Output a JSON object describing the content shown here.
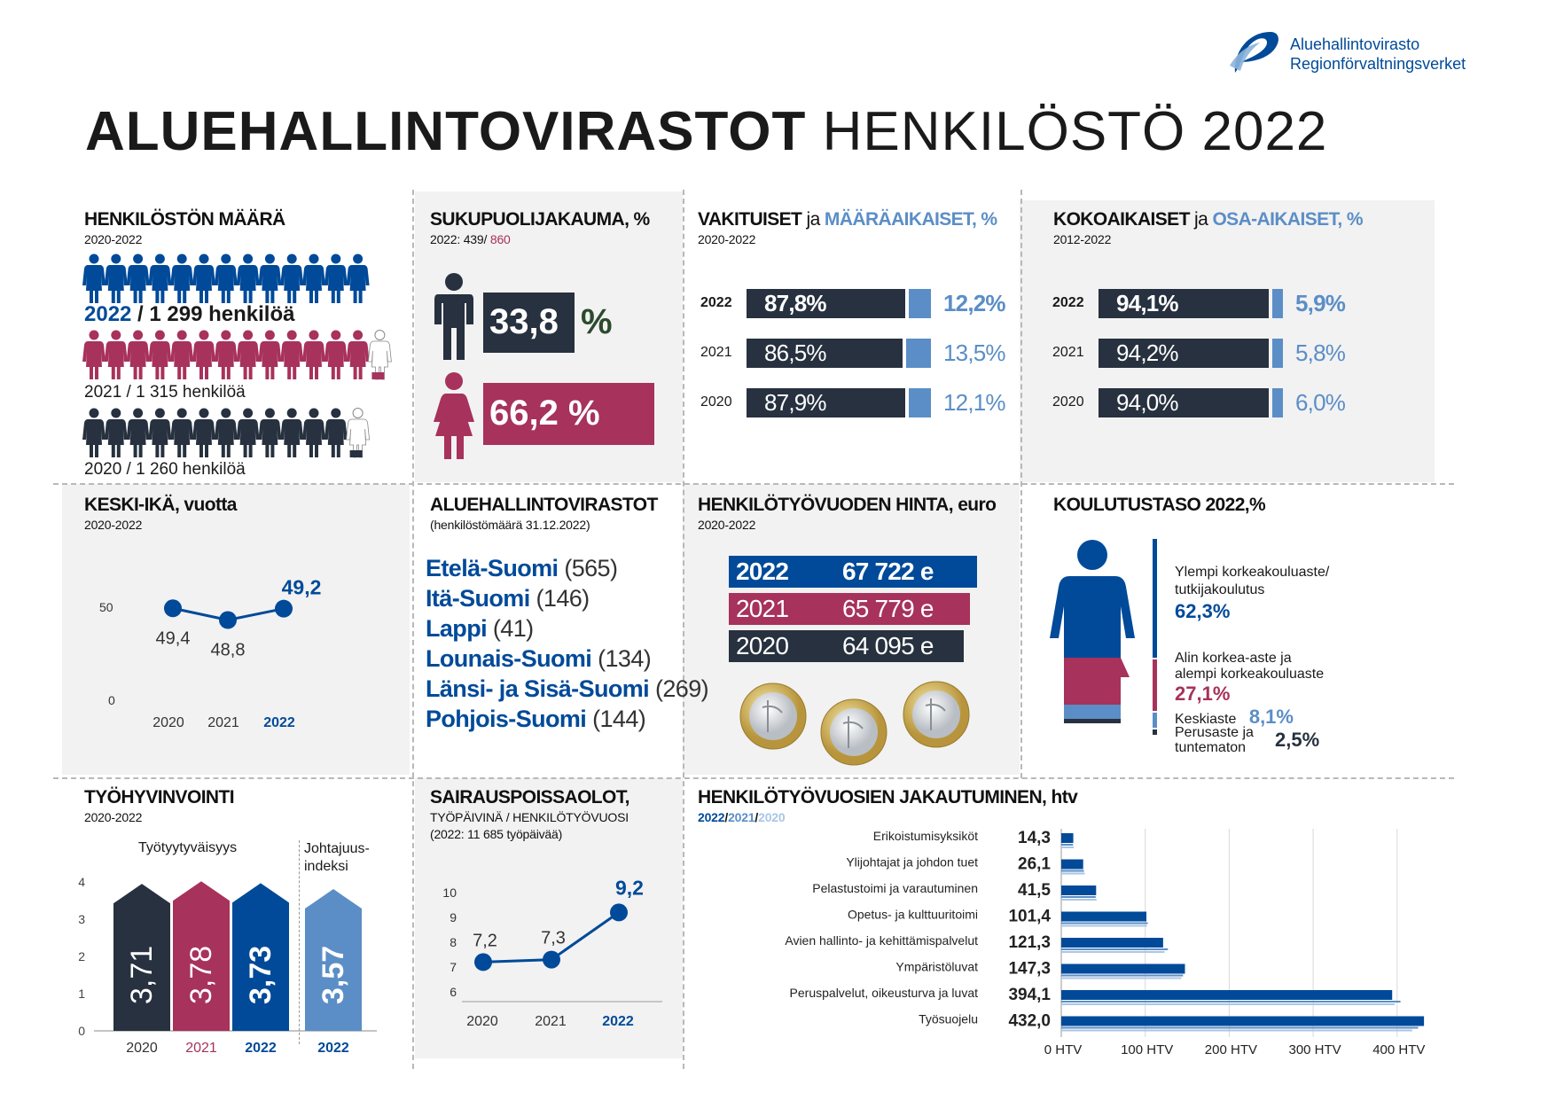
{
  "logo": {
    "line1": "Aluehallintovirasto",
    "line2": "Regionförvaltningsverket"
  },
  "title": {
    "bold": "ALUEHALLINTOVIRASTOT",
    "light": "HENKILÖSTÖ 2022"
  },
  "colors": {
    "navy": "#27313f",
    "blue": "#004a99",
    "lightblue": "#5b8ec6",
    "red": "#a7325b",
    "grey": "#f2f2f2"
  },
  "headcount": {
    "title": "HENKILÖSTÖN MÄÄRÄ",
    "period": "2020-2022",
    "y2022_year": "2022",
    "y2022_rest": " / 1 299 henkilöä",
    "y2021": "2021 / 1 315 henkilöä",
    "y2020": "2020 / 1 260 henkilöä"
  },
  "gender": {
    "title": "SUKUPUOLIJAKAUMA, %",
    "sub_a": "2022: 439/ ",
    "sub_b": "860",
    "male_value": "33,8",
    "male_unit": "%",
    "female_value": "66,2 %"
  },
  "permanent": {
    "title_a": "VAKITUISET",
    "title_b": " ja ",
    "title_c": "MÄÄRÄAIKAISET, %",
    "period": "2020-2022",
    "rows": [
      {
        "year": "2022",
        "a": "87,8%",
        "b": "12,2%",
        "a_val": 87.8,
        "b_val": 12.2
      },
      {
        "year": "2021",
        "a": "86,5%",
        "b": "13,5%",
        "a_val": 86.5,
        "b_val": 13.5
      },
      {
        "year": "2020",
        "a": "87,9%",
        "b": "12,1%",
        "a_val": 87.9,
        "b_val": 12.1
      }
    ]
  },
  "fulltime": {
    "title_a": "KOKOAIKAISET",
    "title_b": " ja ",
    "title_c": "OSA-AIKAISET, %",
    "period": "2012-2022",
    "rows": [
      {
        "year": "2022",
        "a": "94,1%",
        "b": "5,9%",
        "a_val": 94.1,
        "b_val": 5.9
      },
      {
        "year": "2021",
        "a": "94,2%",
        "b": "5,8%",
        "a_val": 94.2,
        "b_val": 5.8
      },
      {
        "year": "2020",
        "a": "94,0%",
        "b": "6,0%",
        "a_val": 94.0,
        "b_val": 6.0
      }
    ]
  },
  "age": {
    "title": "KESKI-IKÄ, vuotta",
    "period": "2020-2022",
    "y50": "50",
    "y0": "0",
    "labels": [
      "49,4",
      "48,8",
      "49,2"
    ],
    "years": [
      "2020",
      "2021",
      "2022"
    ]
  },
  "agencies": {
    "title": "ALUEHALLINTOVIRASTOT",
    "sub": "(henkilöstömäärä 31.12.2022)",
    "items": [
      {
        "name": "Etelä-Suomi",
        "count": " (565)"
      },
      {
        "name": "Itä-Suomi",
        "count": " (146)"
      },
      {
        "name": "Lappi",
        "count": " (41)"
      },
      {
        "name": "Lounais-Suomi",
        "count": " (134)"
      },
      {
        "name": "Länsi- ja Sisä-Suomi",
        "count": " (269)"
      },
      {
        "name": "Pohjois-Suomi",
        "count": " (144)"
      }
    ]
  },
  "cost": {
    "title": "HENKILÖTYÖVUODEN HINTA, euro",
    "period": "2020-2022",
    "rows": [
      {
        "year": "2022",
        "value": "67 722 e"
      },
      {
        "year": "2021",
        "value": "65 779 e"
      },
      {
        "year": "2020",
        "value": "64 095 e"
      }
    ]
  },
  "education": {
    "title": "KOULUTUSTASO 2022,%",
    "l1_a": "Ylempi korkeakouluaste/",
    "l1_b": "tutkijakoulutus",
    "l1_v": "62,3%",
    "l2_a": "Alin korkea-aste ja",
    "l2_b": "alempi korkeakouluaste",
    "l2_v": "27,1%",
    "l3": "Keskiaste",
    "l3_v": "8,1%",
    "l4_a": "Perusaste ja",
    "l4_b": "tuntematon",
    "l4_v": "2,5%"
  },
  "wellbeing": {
    "title": "TYÖHYVINVOINTI",
    "period": "2020-2022",
    "group1": "Työtyytyväisyys",
    "group2_a": "Johtajuus-",
    "group2_b": "indeksi",
    "yticks": [
      "4",
      "3",
      "2",
      "1",
      "0"
    ],
    "bars": [
      "3,71",
      "3,78",
      "3,73",
      "3,57"
    ],
    "years": [
      "2020",
      "2021",
      "2022",
      "2022"
    ]
  },
  "sick": {
    "title": "SAIRAUSPOISSAOLOT,",
    "sub1": "TYÖPÄIVINÄ / HENKILÖTYÖVUOSI",
    "sub2": "(2022: 11 685 työpäivää)",
    "yticks": [
      "10",
      "9",
      "8",
      "7",
      "6"
    ],
    "labels": [
      "7,2",
      "7,3",
      "9,2"
    ],
    "years": [
      "2020",
      "2021",
      "2022"
    ]
  },
  "htv": {
    "title": "HENKILÖTYÖVUOSIEN JAKAUTUMINEN, htv",
    "leg_a": "2022",
    "leg_s1": "/",
    "leg_b": "2021",
    "leg_s2": "/",
    "leg_c": "2020",
    "xticks": [
      "0 HTV",
      "100 HTV",
      "200 HTV",
      "300 HTV",
      "400 HTV"
    ]
  },
  "chart_data": [
    {
      "type": "bar",
      "title": "VAKITUISET ja MÄÄRÄAIKAISET, %",
      "categories": [
        "2022",
        "2021",
        "2020"
      ],
      "series": [
        {
          "name": "VAKITUISET",
          "values": [
            87.8,
            86.5,
            87.9
          ]
        },
        {
          "name": "MÄÄRÄAIKAISET",
          "values": [
            12.2,
            13.5,
            12.1
          ]
        }
      ]
    },
    {
      "type": "bar",
      "title": "KOKOAIKAISET ja OSA-AIKAISET, %",
      "categories": [
        "2022",
        "2021",
        "2020"
      ],
      "series": [
        {
          "name": "KOKOAIKAISET",
          "values": [
            94.1,
            94.2,
            94.0
          ]
        },
        {
          "name": "OSA-AIKAISET",
          "values": [
            5.9,
            5.8,
            6.0
          ]
        }
      ]
    },
    {
      "type": "line",
      "title": "KESKI-IKÄ, vuotta",
      "x": [
        "2020",
        "2021",
        "2022"
      ],
      "values": [
        49.4,
        48.8,
        49.2
      ],
      "ylim": [
        0,
        50
      ]
    },
    {
      "type": "bar",
      "title": "TYÖHYVINVOINTI",
      "categories": [
        "2020",
        "2021",
        "2022",
        "2022"
      ],
      "values": [
        3.71,
        3.78,
        3.73,
        3.57
      ],
      "ylim": [
        0,
        4
      ]
    },
    {
      "type": "line",
      "title": "SAIRAUSPOISSAOLOT,",
      "x": [
        "2020",
        "2021",
        "2022"
      ],
      "values": [
        7.2,
        7.3,
        9.2
      ],
      "ylim": [
        6,
        10
      ]
    },
    {
      "type": "bar",
      "title": "HENKILÖTYÖVUOSIEN JAKAUTUMINEN, htv",
      "categories": [
        "Erikoistumisyksiköt",
        "Ylijohtajat ja johdon tuet",
        "Pelastustoimi ja varautuminen",
        "Opetus- ja kulttuuritoimi",
        "Avien hallinto- ja kehittämispalvelut",
        "Ympäristöluvat",
        "Peruspalvelut, oikeusturva ja luvat",
        "Työsuojelu"
      ],
      "labels": [
        "14,3",
        "26,1",
        "41,5",
        "101,4",
        "121,3",
        "147,3",
        "394,1",
        "432,0"
      ],
      "series": [
        {
          "name": "2022",
          "values": [
            14.3,
            26.1,
            41.5,
            101.4,
            121.3,
            147.3,
            394.1,
            432.0
          ]
        },
        {
          "name": "2021",
          "values": [
            14,
            27,
            41,
            103,
            127,
            145,
            404,
            425
          ]
        },
        {
          "name": "2020",
          "values": [
            15,
            28,
            42,
            102,
            123,
            143,
            397,
            418
          ]
        }
      ],
      "xlim": [
        0,
        450
      ]
    }
  ]
}
